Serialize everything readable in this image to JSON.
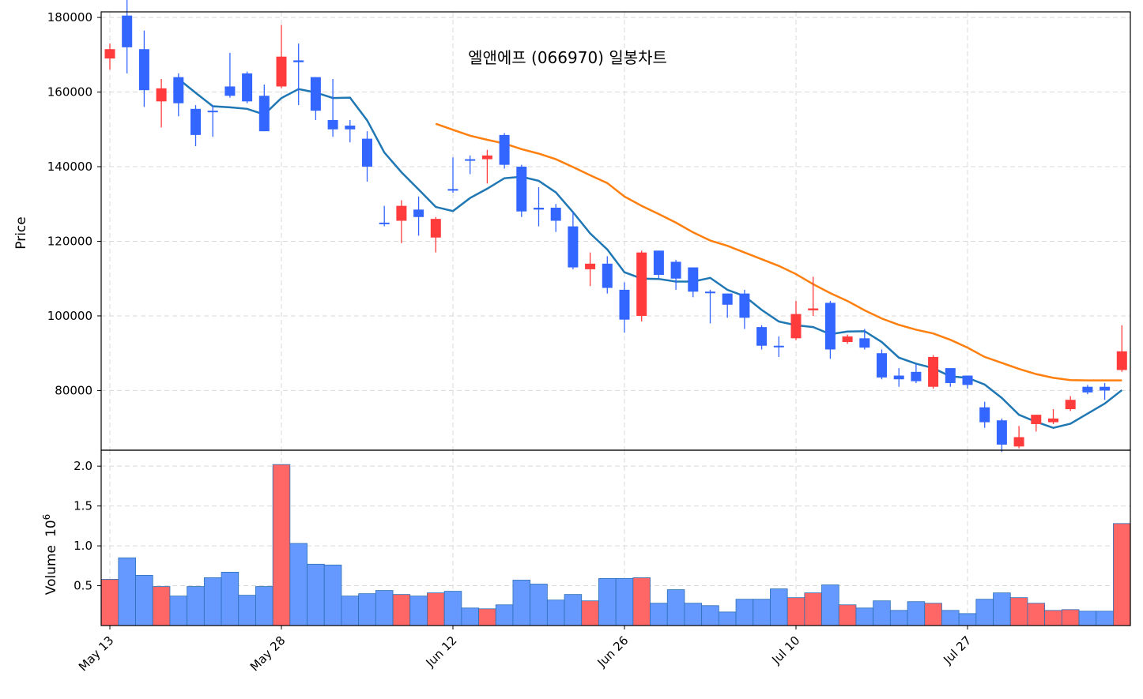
{
  "chart_data": [
    {
      "type": "candlestick",
      "title": "엘앤에프 (066970) 일봉차트",
      "ylabel": "Price",
      "ylim": [
        64000,
        181500
      ],
      "yticks": [
        80000,
        100000,
        120000,
        140000,
        160000,
        180000
      ],
      "ytick_labels": [
        "80000",
        "100000",
        "120000",
        "140000",
        "160000",
        "180000"
      ],
      "grid": true,
      "colors": {
        "up": "#ff3b3b",
        "down": "#3366ff",
        "ma5": "#1f77b4",
        "ma20": "#ff7f0e"
      },
      "series": [
        {
          "name": "",
          "style": "candles"
        },
        {
          "name": "",
          "style": "ma5",
          "values": [
            null,
            null,
            null,
            null,
            163500,
            159800,
            156200,
            155900,
            155500,
            154000,
            158400,
            160800,
            159900,
            158400,
            158500,
            152400,
            143800,
            138500,
            133900,
            129200,
            128100,
            131600,
            134100,
            136900,
            137300,
            136200,
            133100,
            127800,
            122100,
            117800,
            111700,
            110000,
            109900,
            109200,
            109200,
            110200,
            107000,
            105300,
            101600,
            98500,
            97500,
            97000,
            95100,
            95800,
            95900,
            93000,
            88800,
            87200,
            86000,
            83800,
            83400,
            81600,
            78000,
            73500,
            71600,
            70000,
            71100,
            73800,
            76500,
            80100
          ]
        },
        {
          "name": "",
          "style": "ma20",
          "values": [
            null,
            null,
            null,
            null,
            null,
            null,
            null,
            null,
            null,
            null,
            null,
            null,
            null,
            null,
            null,
            null,
            null,
            null,
            null,
            151500,
            149900,
            148300,
            147200,
            146200,
            144700,
            143500,
            142000,
            139900,
            137700,
            135600,
            132000,
            129500,
            127300,
            125000,
            122400,
            120200,
            118800,
            117000,
            115200,
            113400,
            111200,
            108500,
            106100,
            104000,
            101500,
            99300,
            97600,
            96300,
            95300,
            93600,
            91500,
            89000,
            87400,
            85800,
            84400,
            83400,
            82800,
            82700,
            82700,
            82700
          ]
        }
      ],
      "x": [
        "May 13",
        "May 14",
        "May 15",
        "May 16",
        "May 17",
        "May 20",
        "May 21",
        "May 22",
        "May 23",
        "May 24",
        "May 28",
        "May 29",
        "May 30",
        "May 31",
        "Jun 3",
        "Jun 4",
        "Jun 5",
        "Jun 6",
        "Jun 7",
        "Jun 10",
        "Jun 12",
        "Jun 13",
        "Jun 14",
        "Jun 17",
        "Jun 18",
        "Jun 19",
        "Jun 20",
        "Jun 21",
        "Jun 24",
        "Jun 25",
        "Jun 26",
        "Jun 27",
        "Jun 28",
        "Jul 1",
        "Jul 2",
        "Jul 3",
        "Jul 4",
        "Jul 5",
        "Jul 8",
        "Jul 9",
        "Jul 10",
        "Jul 11",
        "Jul 12",
        "Jul 15",
        "Jul 16",
        "Jul 17",
        "Jul 18",
        "Jul 19",
        "Jul 22",
        "Jul 23",
        "Jul 27",
        "Jul 28",
        "Jul 29",
        "Jul 30",
        "Jul 31",
        "Aug 1",
        "Aug 2",
        "Aug 5",
        "Aug 6",
        "Aug 7"
      ],
      "xticks": [
        "May 13",
        "May 28",
        "Jun 12",
        "Jun 26",
        "Jul 10",
        "Jul 27"
      ],
      "xtick_positions": [
        0,
        10,
        20,
        30,
        40,
        50
      ],
      "open": [
        169000,
        180500,
        171500,
        157500,
        164000,
        155500,
        155000,
        161500,
        165000,
        159000,
        161500,
        168500,
        164000,
        152500,
        151000,
        147500,
        125000,
        125500,
        128500,
        121000,
        134000,
        142000,
        142000,
        148500,
        140000,
        129000,
        129000,
        124000,
        112500,
        114000,
        107000,
        100000,
        117500,
        114500,
        113000,
        106500,
        106000,
        106000,
        97000,
        92000,
        94000,
        101500,
        103500,
        93000,
        94000,
        90000,
        84000,
        85000,
        81000,
        86000,
        84000,
        75500,
        72000,
        65000,
        71000,
        71500,
        75000,
        81000,
        81000,
        85500
      ],
      "close": [
        171500,
        172000,
        160500,
        161000,
        157000,
        148500,
        155000,
        159000,
        157500,
        149500,
        169500,
        168000,
        155000,
        150000,
        150000,
        140000,
        125000,
        129500,
        126500,
        126000,
        134000,
        142000,
        143000,
        140500,
        128000,
        128500,
        125500,
        113000,
        114000,
        107500,
        99000,
        117000,
        111000,
        110000,
        106500,
        106500,
        103000,
        99500,
        92000,
        92000,
        100500,
        102000,
        91000,
        94500,
        91500,
        83500,
        83000,
        82500,
        89000,
        82000,
        81500,
        71500,
        65500,
        67500,
        73500,
        72500,
        77500,
        79500,
        80000,
        90500
      ],
      "high": [
        173000,
        186000,
        176500,
        163500,
        165000,
        156500,
        156500,
        170500,
        165500,
        162000,
        178000,
        173000,
        164000,
        163500,
        152500,
        149500,
        129500,
        131000,
        132000,
        126500,
        142500,
        143000,
        144500,
        149000,
        140500,
        134500,
        130000,
        128000,
        117000,
        116000,
        109000,
        117500,
        117500,
        115000,
        113000,
        107000,
        106000,
        107000,
        97500,
        94500,
        104000,
        110500,
        104000,
        95000,
        96500,
        91000,
        86000,
        87000,
        89500,
        86000,
        84000,
        77000,
        72500,
        70500,
        73500,
        75000,
        78500,
        81500,
        82000,
        97500
      ],
      "low": [
        166000,
        165000,
        156000,
        150500,
        153500,
        145500,
        148000,
        158500,
        157000,
        149500,
        161000,
        156500,
        152500,
        148000,
        146500,
        136000,
        124000,
        119500,
        121500,
        117000,
        133000,
        138000,
        135500,
        139500,
        126500,
        124000,
        122500,
        112500,
        108000,
        106000,
        95500,
        98500,
        110000,
        107000,
        105000,
        98000,
        99500,
        96500,
        91000,
        89000,
        93500,
        100000,
        88500,
        92500,
        91000,
        83000,
        81000,
        82000,
        80500,
        81000,
        80500,
        70000,
        63500,
        64500,
        69000,
        71000,
        74500,
        79000,
        77500,
        85000
      ]
    },
    {
      "type": "bar",
      "ylabel": "Volume",
      "yoffset_label": "10^6",
      "ylim": [
        0,
        2.2
      ],
      "yticks": [
        0.5,
        1.0,
        1.5,
        2.0
      ],
      "ytick_labels": [
        "0.5",
        "1.0",
        "1.5",
        "2.0"
      ],
      "grid": true,
      "colors": {
        "up": "#ff6666",
        "down": "#6699ff",
        "edge": "#2a6fb5"
      },
      "series": [
        {
          "name": "",
          "values": [
            0.58,
            0.85,
            0.63,
            0.49,
            0.37,
            0.49,
            0.6,
            0.67,
            0.38,
            0.49,
            2.02,
            1.03,
            0.77,
            0.76,
            0.37,
            0.4,
            0.44,
            0.39,
            0.37,
            0.41,
            0.43,
            0.22,
            0.21,
            0.26,
            0.57,
            0.52,
            0.32,
            0.39,
            0.31,
            0.59,
            0.59,
            0.6,
            0.28,
            0.45,
            0.28,
            0.25,
            0.17,
            0.33,
            0.33,
            0.46,
            0.35,
            0.41,
            0.51,
            0.26,
            0.22,
            0.31,
            0.19,
            0.3,
            0.28,
            0.19,
            0.15,
            0.33,
            0.41,
            0.35,
            0.28,
            0.19,
            0.2,
            0.18,
            0.18,
            1.28
          ]
        }
      ],
      "xtick_labels": [
        "May 13",
        "May 28",
        "Jun 12",
        "Jun 26",
        "Jul 10",
        "Jul 27"
      ]
    }
  ]
}
